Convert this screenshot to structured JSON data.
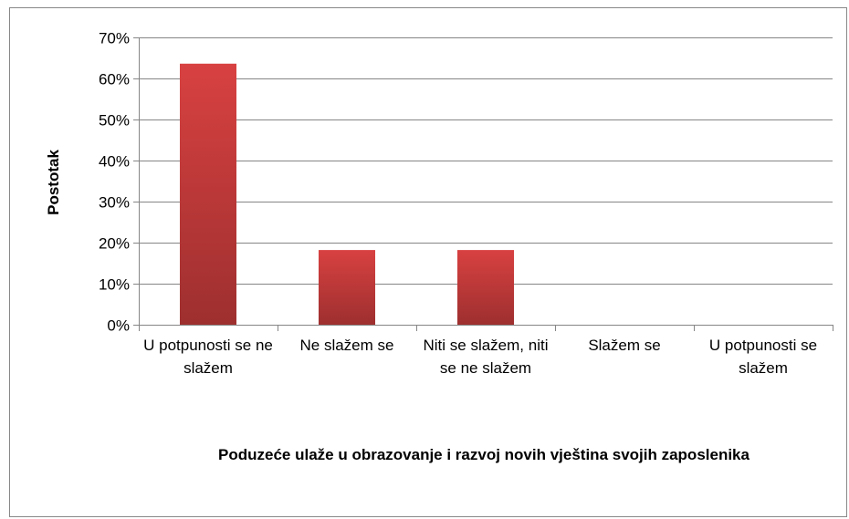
{
  "chart_data": {
    "type": "bar",
    "x_label": "Poduzeće ulaže u obrazovanje i razvoj novih vještina svojih zaposlenika",
    "y_label": "Postotak",
    "categories": [
      "U potpunosti se ne slažem",
      "Ne slažem se",
      "Niti se slažem, niti se ne slažem",
      "Slažem se",
      "U potpunosti se slažem"
    ],
    "values": [
      63.6,
      18.2,
      18.2,
      0,
      0
    ],
    "color": "#c83737",
    "ylim": [
      0,
      70
    ],
    "yticks": [
      {
        "value": 0,
        "label": "0%"
      },
      {
        "value": 10,
        "label": "10%"
      },
      {
        "value": 20,
        "label": "20%"
      },
      {
        "value": 30,
        "label": "30%"
      },
      {
        "value": 40,
        "label": "40%"
      },
      {
        "value": 50,
        "label": "50%"
      },
      {
        "value": 60,
        "label": "60%"
      },
      {
        "value": 70,
        "label": "70%"
      }
    ],
    "grid": true
  }
}
